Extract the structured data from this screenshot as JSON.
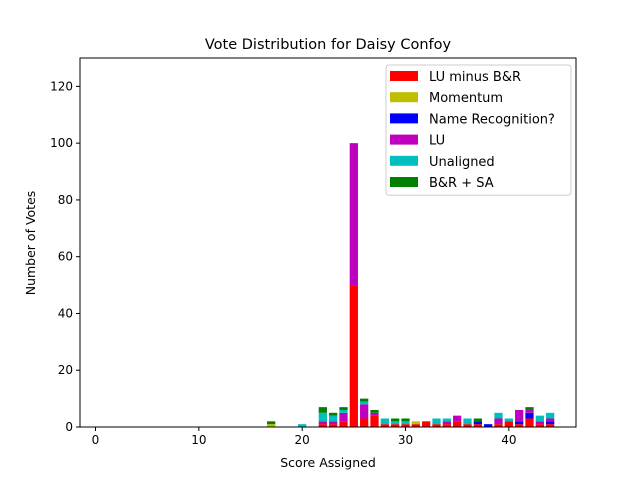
{
  "chart_data": {
    "type": "bar",
    "stacked": true,
    "title": "Vote Distribution for Daisy Confoy",
    "xlabel": "Score Assigned",
    "ylabel": "Number of Votes",
    "xlim": [
      -1.5,
      46.5
    ],
    "ylim": [
      0,
      130
    ],
    "xticks": [
      0,
      10,
      20,
      30,
      40
    ],
    "yticks": [
      0,
      20,
      40,
      60,
      80,
      100,
      120
    ],
    "grid": false,
    "legend_position": "top-right",
    "x": [
      17,
      20,
      22,
      23,
      24,
      25,
      26,
      27,
      28,
      29,
      30,
      31,
      32,
      33,
      34,
      35,
      36,
      37,
      38,
      39,
      40,
      41,
      42,
      43,
      44
    ],
    "series": [
      {
        "name": "LU minus B&R",
        "color": "#ff0000",
        "values": [
          0,
          0,
          1,
          1,
          2,
          50,
          3,
          4,
          1,
          1,
          1,
          1,
          2,
          1,
          1,
          2,
          1,
          1,
          0,
          1,
          2,
          1,
          3,
          1,
          1
        ]
      },
      {
        "name": "Momentum",
        "color": "#bfbf00",
        "values": [
          1,
          0,
          0,
          0,
          0,
          0,
          0,
          0,
          0,
          0,
          0,
          1,
          0,
          0,
          0,
          0,
          0,
          0,
          0,
          0,
          0,
          0,
          0,
          0,
          0
        ]
      },
      {
        "name": "Name Recognition?",
        "color": "#0000ff",
        "values": [
          0,
          0,
          0,
          0,
          0,
          0,
          0,
          0,
          0,
          0,
          0,
          0,
          0,
          0,
          0,
          0,
          0,
          1,
          1,
          0,
          0,
          1,
          2,
          0,
          1
        ]
      },
      {
        "name": "LU",
        "color": "#bf00bf",
        "values": [
          0,
          0,
          1,
          1,
          3,
          50,
          5,
          1,
          0,
          0,
          0,
          0,
          0,
          0,
          1,
          2,
          0,
          0,
          0,
          2,
          0,
          4,
          1,
          1,
          1
        ]
      },
      {
        "name": "Unaligned",
        "color": "#00bfbf",
        "values": [
          0,
          1,
          3,
          2,
          1,
          0,
          1,
          0,
          2,
          1,
          1,
          0,
          0,
          2,
          1,
          0,
          2,
          0,
          0,
          2,
          1,
          0,
          0,
          2,
          2
        ]
      },
      {
        "name": "B&R + SA",
        "color": "#008000",
        "values": [
          1,
          0,
          2,
          1,
          1,
          0,
          1,
          1,
          0,
          1,
          1,
          0,
          0,
          0,
          0,
          0,
          0,
          1,
          0,
          0,
          0,
          0,
          1,
          0,
          0
        ]
      }
    ]
  }
}
